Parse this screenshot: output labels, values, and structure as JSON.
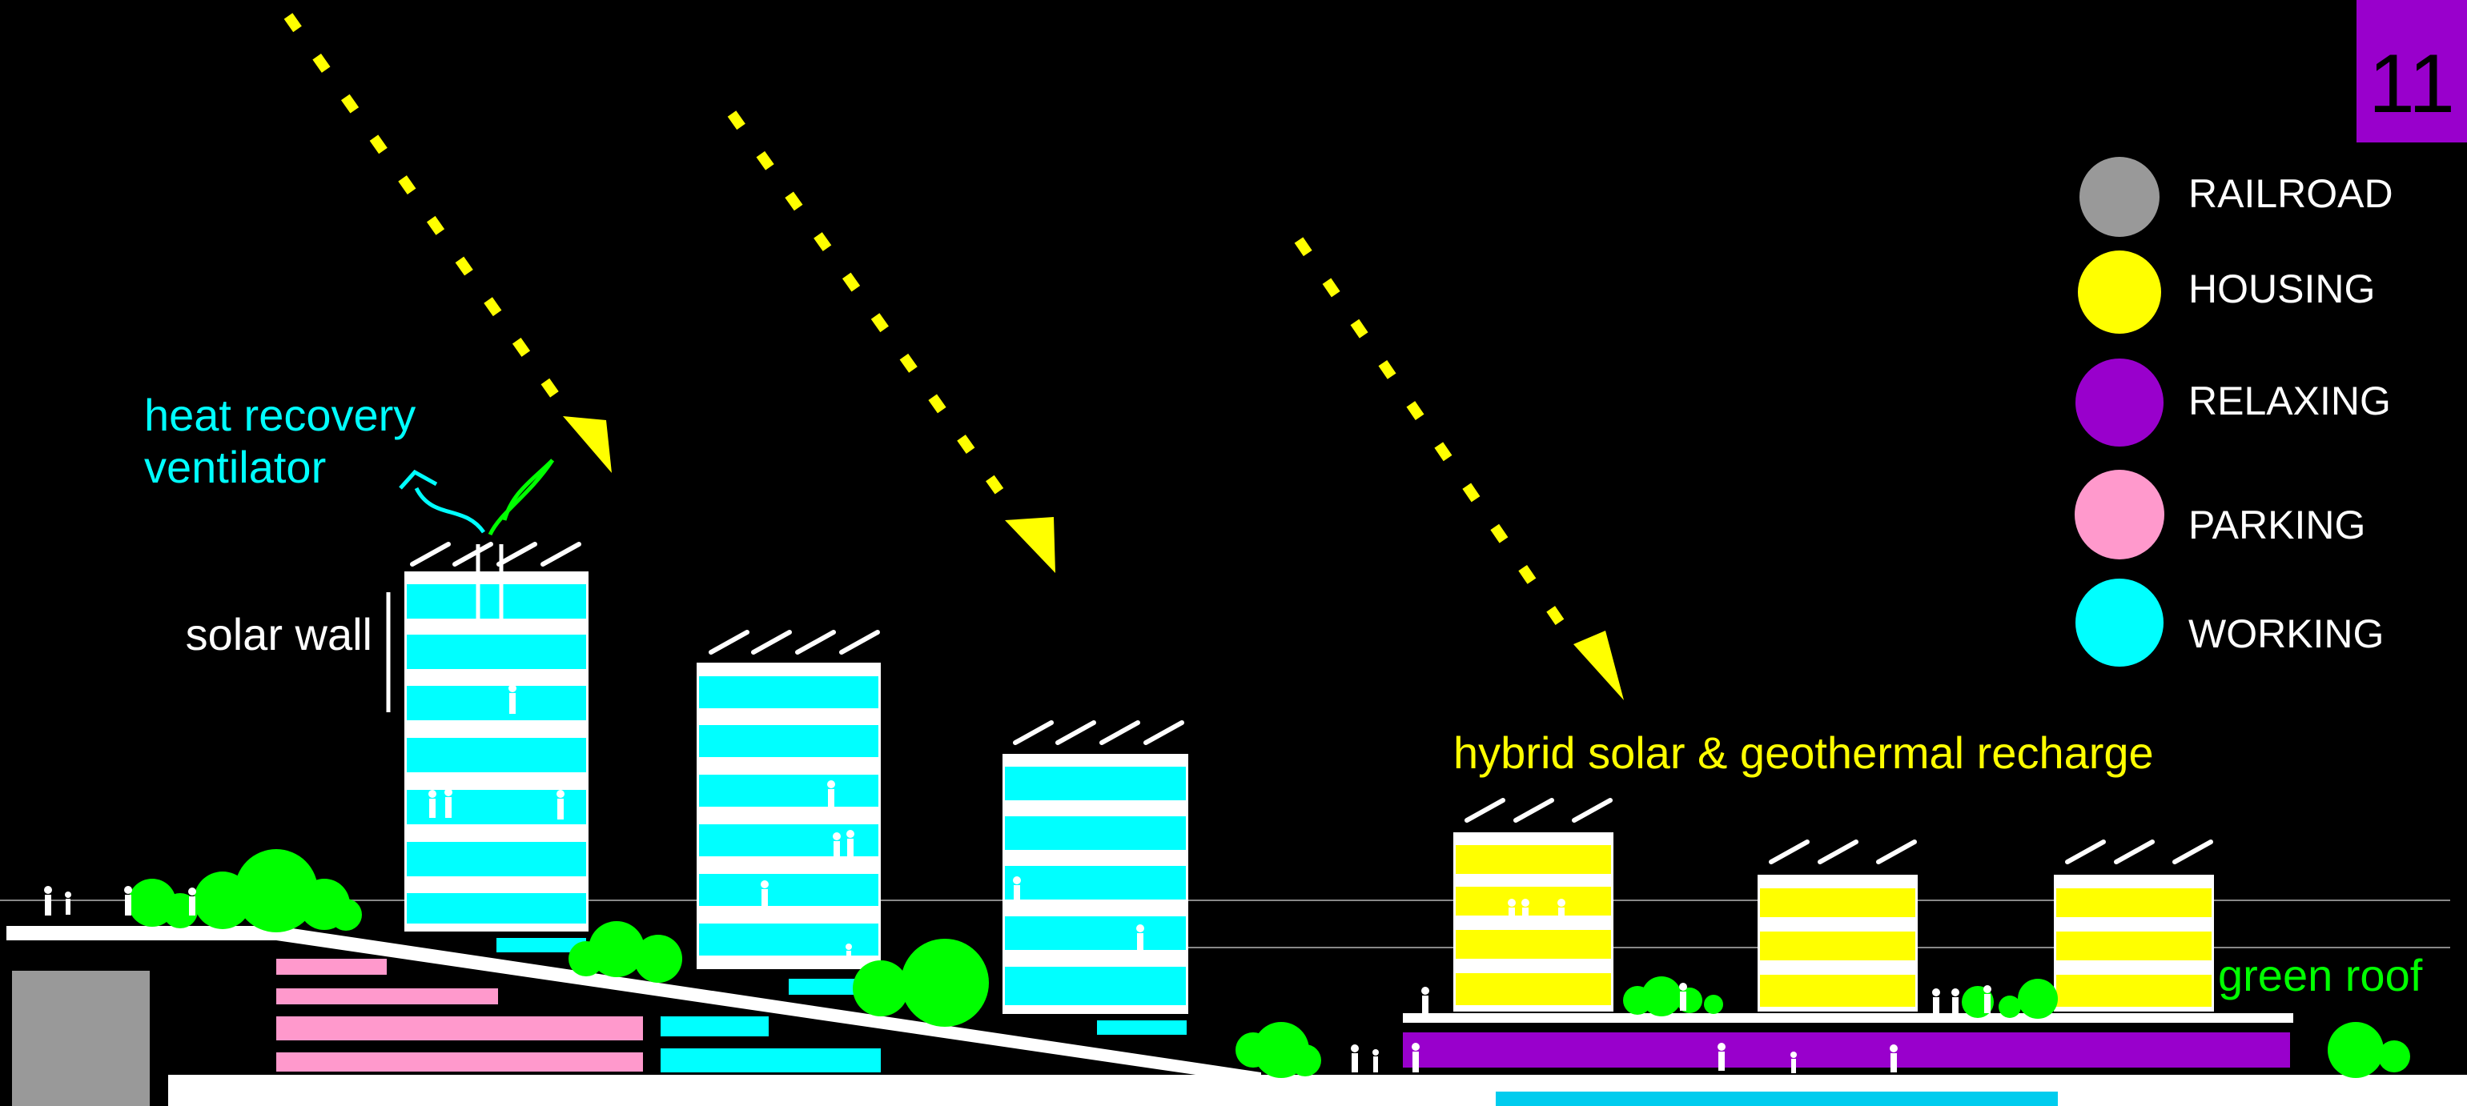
{
  "page_number": "11",
  "legend": [
    {
      "label": "RAILROAD",
      "color": "#999999"
    },
    {
      "label": "HOUSING",
      "color": "#ffff00"
    },
    {
      "label": "RELAXING",
      "color": "#9900cc"
    },
    {
      "label": "PARKING",
      "color": "#ff99cc"
    },
    {
      "label": "WORKING",
      "color": "#00ffff"
    }
  ],
  "annotations": {
    "heat_recovery_line1": "heat recovery",
    "heat_recovery_line2": "ventilator",
    "solar_wall": "solar wall",
    "hybrid": "hybrid solar & geothermal recharge",
    "green_roof": "green roof"
  },
  "colors": {
    "background": "#000000",
    "working": "#00ffff",
    "housing": "#ffff00",
    "relaxing": "#9900cc",
    "parking": "#ff99cc",
    "railroad": "#999999",
    "greenery": "#00ff00",
    "sun_ray": "#ffff00",
    "page_badge": "#9900cc",
    "water": "#00ccee"
  },
  "icons": [
    "sun-ray-arrow-icon",
    "tree-icon",
    "person-icon",
    "solar-panel-icon",
    "ventilator-airflow-icon"
  ]
}
